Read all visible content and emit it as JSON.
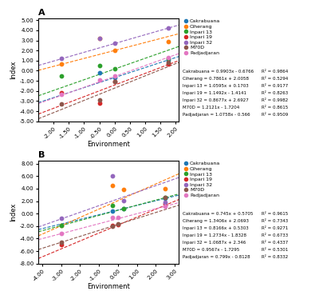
{
  "chart_data": [
    {
      "type": "scatter",
      "title": "A",
      "x_label": "Environment",
      "y_label": "Index",
      "xlim": [
        -2.5,
        2.1
      ],
      "ylim": [
        -5.0,
        5.2
      ],
      "xticks": [
        {
          "value": -2.0,
          "label": "-2.00"
        },
        {
          "value": -1.5,
          "label": "-1.50"
        },
        {
          "value": -1.0,
          "label": "-1.00"
        },
        {
          "value": -0.5,
          "label": "-0.50"
        },
        {
          "value": 0.0,
          "label": "0.00"
        },
        {
          "value": 0.5,
          "label": "0.50"
        },
        {
          "value": 1.0,
          "label": "1.00"
        },
        {
          "value": 1.5,
          "label": "1.50"
        },
        {
          "value": 2.0,
          "label": "2.00"
        }
      ],
      "yticks": [
        {
          "value": -5.0,
          "label": "-5.00"
        },
        {
          "value": -4.0,
          "label": "-4.00"
        },
        {
          "value": -3.0,
          "label": "-3.00"
        },
        {
          "value": -2.0,
          "label": "-2.00"
        },
        {
          "value": -1.0,
          "label": "-1.00"
        },
        {
          "value": 0.0,
          "label": "0.00"
        },
        {
          "value": 1.0,
          "label": "1.00"
        },
        {
          "value": 2.0,
          "label": "2.00"
        },
        {
          "value": 3.0,
          "label": "3.00"
        },
        {
          "value": 4.0,
          "label": "4.00"
        },
        {
          "value": 5.0,
          "label": "5.00"
        }
      ],
      "legend": "upper left",
      "line_style": "dashed",
      "series": [
        {
          "name": "Cakrabuana",
          "x": [
            -0.5,
            0.0,
            1.75
          ],
          "values": [
            -0.18,
            -0.68,
            1.06
          ],
          "slope": 0.9903,
          "intercept": -0.6766,
          "r2": 0.9864,
          "equation": "Cakrabuana = 0.9903x - 0.6766",
          "r2_label": "R² = 0.9864"
        },
        {
          "name": "Ciherang",
          "x": [
            -1.75,
            -0.5,
            0.0,
            1.75
          ],
          "values": [
            0.68,
            3.2,
            2.0,
            2.9
          ],
          "slope": 0.7861,
          "intercept": 2.0058,
          "r2": 0.5294,
          "equation": "Ciherang = 0.7861x + 2.0058",
          "r2_label": "R² = 0.5294"
        },
        {
          "name": "Inpari 13",
          "x": [
            -1.75,
            -0.5,
            0.0,
            1.75
          ],
          "values": [
            -0.5,
            0.52,
            0.18,
            1.22
          ],
          "slope": 1.0595,
          "intercept": 0.1703,
          "r2": 0.9177,
          "equation": "Inpari 13 = 1.0595x + 0.1703",
          "r2_label": "R² = 0.9177"
        },
        {
          "name": "Inpari 19",
          "x": [
            -1.75,
            -0.5,
            0.0,
            1.75
          ],
          "values": [
            -2.2,
            -3.2,
            -1.1,
            0.7
          ],
          "slope": 1.1492,
          "intercept": -1.4141,
          "r2": 0.8263,
          "equation": "Inpari 19 = 1.1492x - 1.4141",
          "r2_label": "R² = 0.8263"
        },
        {
          "name": "Inpari 32",
          "x": [
            -1.75,
            -0.5,
            0.0,
            1.75
          ],
          "values": [
            1.2,
            3.2,
            2.7,
            4.2
          ],
          "slope": 0.8677,
          "intercept": 2.6927,
          "r2": 0.9982,
          "equation": "Inpari 32 = 0.8677x + 2.6927",
          "r2_label": "R² = 0.9982"
        },
        {
          "name": "M70D",
          "x": [
            -1.75,
            -0.5,
            0.0,
            1.75
          ],
          "values": [
            -3.3,
            -2.9,
            -1.1,
            0.8
          ],
          "slope": 1.2121,
          "intercept": -1.7204,
          "r2": 0.8615,
          "equation": "M70D = 1.2121x - 1.7204",
          "r2_label": "R² = 0.8615"
        },
        {
          "name": "Padjadjaran",
          "x": [
            -1.75,
            -0.5,
            0.0,
            1.75
          ],
          "values": [
            -2.3,
            -0.9,
            -0.55,
            1.3
          ],
          "slope": 1.0758,
          "intercept": -0.566,
          "r2": 0.9509,
          "equation": "Padjadjaran = 1.0758x - 0.566",
          "r2_label": "R² = 0.9509"
        }
      ]
    },
    {
      "type": "scatter",
      "title": "B",
      "x_label": "Environment",
      "y_label": "Index",
      "xlim": [
        -4.2,
        3.2
      ],
      "ylim": [
        -8.0,
        8.5
      ],
      "xticks": [
        {
          "value": -4.0,
          "label": "-4.00"
        },
        {
          "value": -3.0,
          "label": "-3.00"
        },
        {
          "value": -2.0,
          "label": "-2.00"
        },
        {
          "value": -1.0,
          "label": "-1.00"
        },
        {
          "value": 0.0,
          "label": "0.00"
        },
        {
          "value": 1.0,
          "label": "1.00"
        },
        {
          "value": 2.0,
          "label": "2.00"
        },
        {
          "value": 3.0,
          "label": "3.00"
        }
      ],
      "yticks": [
        {
          "value": -8.0,
          "label": "-8.00"
        },
        {
          "value": -6.0,
          "label": "-6.00"
        },
        {
          "value": -4.0,
          "label": "-4.00"
        },
        {
          "value": -2.0,
          "label": "-2.00"
        },
        {
          "value": 0.0,
          "label": "0.00"
        },
        {
          "value": 2.0,
          "label": "2.00"
        },
        {
          "value": 4.0,
          "label": "4.00"
        },
        {
          "value": 6.0,
          "label": "6.00"
        },
        {
          "value": 8.0,
          "label": "8.00"
        }
      ],
      "legend": "upper left",
      "line_style": "dashed",
      "series": [
        {
          "name": "Cakrabuana",
          "x": [
            -0.3,
            0.3,
            2.5
          ],
          "values": [
            0.35,
            0.79,
            2.43
          ],
          "slope": 0.745,
          "intercept": 0.5705,
          "r2": 0.9615,
          "equation": "Cakrabuana = 0.745x + 0.5705",
          "r2_label": "R² = 0.9615"
        },
        {
          "name": "Ciherang",
          "x": [
            -3.0,
            -0.3,
            0.3,
            2.5
          ],
          "values": [
            -1.95,
            4.48,
            3.86,
            4.0
          ],
          "slope": 1.3406,
          "intercept": 2.0693,
          "r2": 0.7343,
          "equation": "Ciherang = 1.3406x + 2.0693",
          "r2_label": "R² = 0.7343"
        },
        {
          "name": "Inpari 13",
          "x": [
            -3.0,
            -0.3,
            0.3,
            2.5
          ],
          "values": [
            -1.9,
            1.28,
            0.77,
            2.57
          ],
          "slope": 0.8166,
          "intercept": 0.5303,
          "r2": 0.9271,
          "equation": "Inpari 13 = 0.8166x + 0.5303",
          "r2_label": "R² = 0.9271"
        },
        {
          "name": "Inpari 19",
          "x": [
            -3.0,
            -0.3,
            -0.0,
            2.5
          ],
          "values": [
            -5.0,
            -1.95,
            -1.8,
            1.5
          ],
          "slope": 1.2734,
          "intercept": -1.8328,
          "r2": 0.6733,
          "equation": "Inpari 19 = 1.2734x - 1.8328",
          "r2_label": "R² = 0.6733"
        },
        {
          "name": "Inpari 32",
          "x": [
            -3.0,
            -0.3,
            0.3,
            2.5
          ],
          "values": [
            -0.8,
            6.0,
            2.1,
            1.8
          ],
          "slope": 1.0687,
          "intercept": 2.346,
          "r2": 0.4337,
          "equation": "Inpari 32 = 1.0687x + 2.346",
          "r2_label": "R² = 0.4337"
        },
        {
          "name": "M70D",
          "x": [
            -3.0,
            -0.3,
            -0.0,
            2.5
          ],
          "values": [
            -4.6,
            -1.98,
            -1.7,
            2.57
          ],
          "slope": 0.9567,
          "intercept": -1.7295,
          "r2": 0.5301,
          "equation": "M70D = 0.9567x - 1.7295",
          "r2_label": "R² = 0.5301"
        },
        {
          "name": "Padjadjaran",
          "x": [
            -3.0,
            -0.3,
            -0.0,
            2.5
          ],
          "values": [
            -3.2,
            -0.65,
            -0.6,
            1.2
          ],
          "slope": 0.799,
          "intercept": -0.8128,
          "r2": 0.8332,
          "equation": "Padjadjaran = 0.799x - 0.8128",
          "r2_label": "R² = 0.8332"
        }
      ]
    }
  ]
}
